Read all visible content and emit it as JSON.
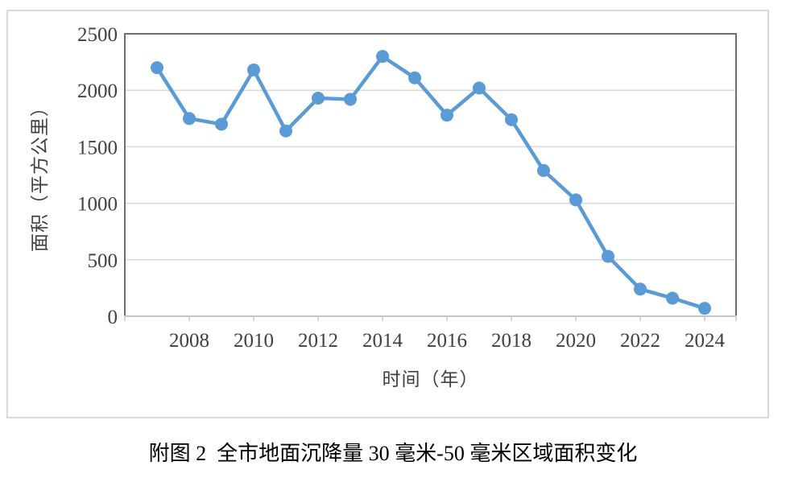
{
  "figure": {
    "caption": "附图 2  全市地面沉降量 30 毫米-50 毫米区域面积变化"
  },
  "chart_data": {
    "type": "line",
    "x": [
      2007,
      2008,
      2009,
      2010,
      2011,
      2012,
      2013,
      2014,
      2015,
      2016,
      2017,
      2018,
      2019,
      2020,
      2021,
      2022,
      2023,
      2024
    ],
    "values": [
      2200,
      1750,
      1700,
      2180,
      1640,
      1930,
      1920,
      2300,
      2110,
      1780,
      2020,
      1740,
      1290,
      1030,
      530,
      240,
      160,
      70
    ],
    "title": "",
    "xlabel": "时间（年）",
    "ylabel": "面积（平方公里）",
    "ylim": [
      0,
      2500
    ],
    "yticks": [
      0,
      500,
      1000,
      1500,
      2000,
      2500
    ],
    "xtick_labels": [
      "2008",
      "2010",
      "2012",
      "2014",
      "2016",
      "2018",
      "2020",
      "2022",
      "2024"
    ],
    "grid": true,
    "legend": false,
    "line_color": "#5B9BD5"
  },
  "colors": {
    "line": "#5B9BD5",
    "grid": "#D9D9D9",
    "plot_border": "#6E6E6E",
    "x_axis": "#C6C6C6",
    "tick_label": "#404040",
    "frame": "#D9D9D9",
    "caption": "#000000"
  }
}
